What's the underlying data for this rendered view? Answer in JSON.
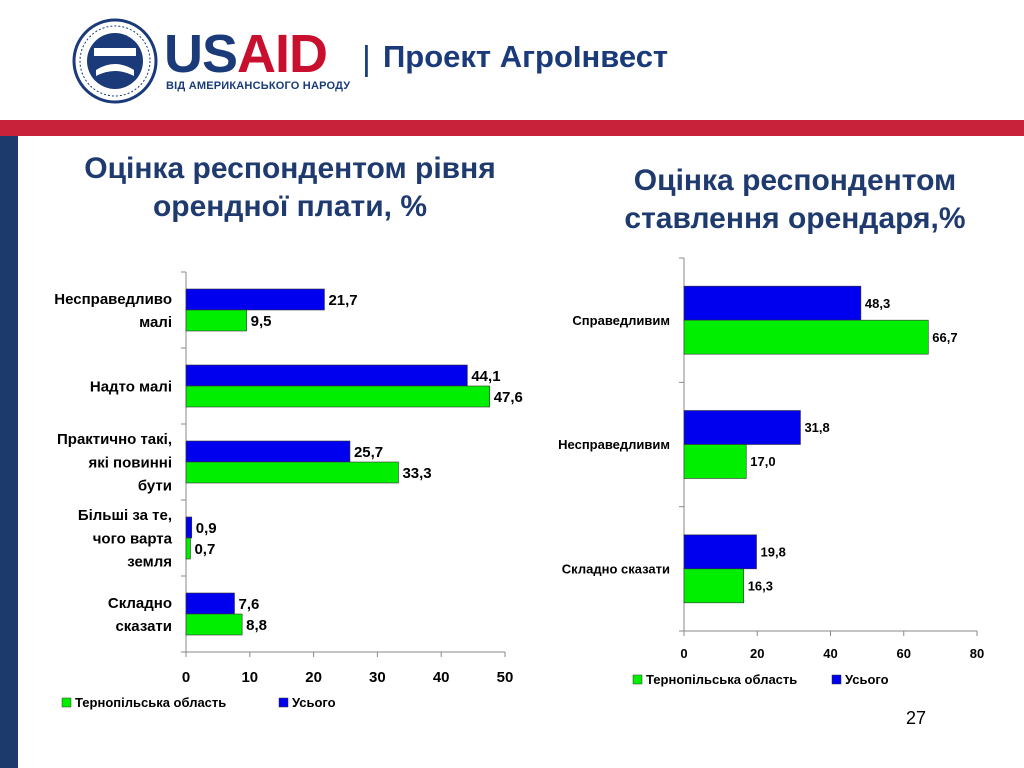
{
  "header": {
    "logo_us": "US",
    "logo_aid": "AID",
    "logo_tagline": "ВІД АМЕРИКАНСЬКОГО НАРОДУ",
    "separator": "|",
    "project_name": "Проект АгроІнвест",
    "seal_icon": "usaid-seal-icon",
    "colors": {
      "navy": "#1a3a7a",
      "red": "#c8102e"
    }
  },
  "colors": {
    "green": "#00ee00",
    "blue": "#0000ee",
    "title": "#1f3a6e",
    "red_bar": "#c8213a",
    "side_bar": "#1c3a6b"
  },
  "page_number": "27",
  "chart_data": [
    {
      "type": "bar",
      "orientation": "horizontal",
      "title": "Оцінка респондентом рівня орендної плати, %",
      "categories": [
        [
          "Несправедливо",
          "малі"
        ],
        [
          "Надто малі"
        ],
        [
          "Практично такі,",
          "які повинні",
          "бути"
        ],
        [
          "Більші за те,",
          "чого варта",
          "земля"
        ],
        [
          "Складно",
          "сказати"
        ]
      ],
      "series": [
        {
          "name": "Усього",
          "color": "#0000ee",
          "values": [
            21.7,
            44.1,
            25.7,
            0.9,
            7.6
          ],
          "labels": [
            "21,7",
            "44,1",
            "25,7",
            "0,9",
            "7,6"
          ]
        },
        {
          "name": "Тернопільська область",
          "color": "#00ee00",
          "values": [
            9.5,
            47.6,
            33.3,
            0.7,
            8.8
          ],
          "labels": [
            "9,5",
            "47,6",
            "33,3",
            "0,7",
            "8,8"
          ]
        }
      ],
      "xlim": [
        0,
        50
      ],
      "ticks": [
        "0",
        "10",
        "20",
        "30",
        "40",
        "50"
      ],
      "legend": [
        "Тернопільська область",
        "Усього"
      ],
      "legend_position": "bottom",
      "grid": false
    },
    {
      "type": "bar",
      "orientation": "horizontal",
      "title": "Оцінка респондентом ставлення орендаря,%",
      "categories": [
        [
          "Справедливим"
        ],
        [
          "Несправедливим"
        ],
        [
          "Складно сказати"
        ]
      ],
      "series": [
        {
          "name": "Усього",
          "color": "#0000ee",
          "values": [
            48.3,
            31.8,
            19.8
          ],
          "labels": [
            "48,3",
            "31,8",
            "19,8"
          ]
        },
        {
          "name": "Тернопільська область",
          "color": "#00ee00",
          "values": [
            66.7,
            17.0,
            16.3
          ],
          "labels": [
            "66,7",
            "17,0",
            "16,3"
          ]
        }
      ],
      "xlim": [
        0,
        80
      ],
      "ticks": [
        "0",
        "20",
        "40",
        "60",
        "80"
      ],
      "legend": [
        "Тернопільська область",
        "Усього"
      ],
      "legend_position": "bottom",
      "grid": false
    }
  ]
}
